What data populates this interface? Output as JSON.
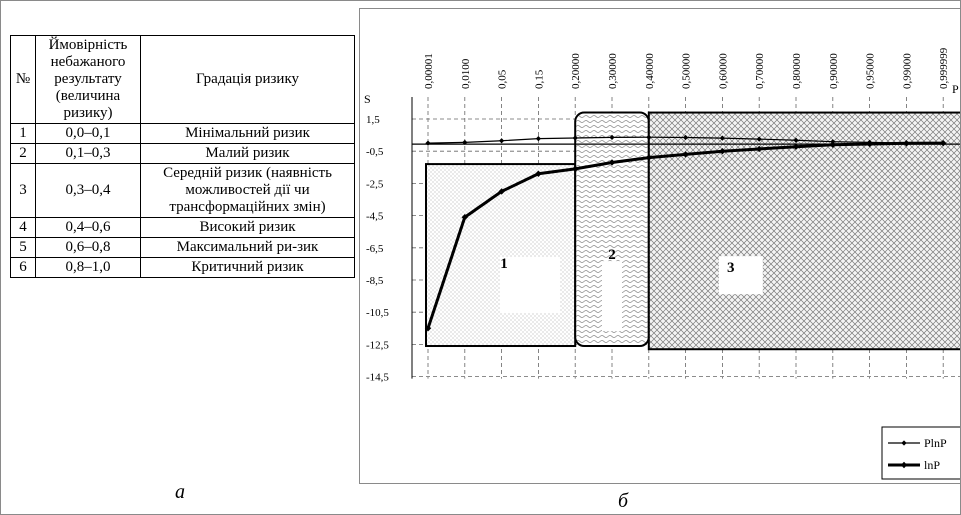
{
  "table": {
    "headers": [
      "№",
      "Ймовірність небажаного результату (величина ризику)",
      "Градація ризику"
    ],
    "rows": [
      {
        "num": "1",
        "range": "0,0–0,1",
        "grade": "Мінімальний ризик"
      },
      {
        "num": "2",
        "range": "0,1–0,3",
        "grade": "Малий ризик"
      },
      {
        "num": "3",
        "range": "0,3–0,4",
        "grade": "Середній ризик (наявність можливостей дії чи трансформаційних змін)"
      },
      {
        "num": "4",
        "range": "0,4–0,6",
        "grade": "Високий ризик"
      },
      {
        "num": "5",
        "range": "0,6–0,8",
        "grade": "Максимальний ри-зик"
      },
      {
        "num": "6",
        "range": "0,8–1,0",
        "grade": "Критичний ризик"
      }
    ]
  },
  "captions": {
    "a": "а",
    "b": "б"
  },
  "chart_data": {
    "type": "line",
    "ylabel": "S",
    "xlabel": "P",
    "categories": [
      "0,00001",
      "0,0100",
      "0,05",
      "0,15",
      "0,20000",
      "0,30000",
      "0,40000",
      "0,50000",
      "0,60000",
      "0,70000",
      "0,80000",
      "0,90000",
      "0,95000",
      "0,99000",
      "0,999999"
    ],
    "x_numeric": [
      1e-05,
      0.01,
      0.05,
      0.15,
      0.2,
      0.3,
      0.4,
      0.5,
      0.6,
      0.7,
      0.8,
      0.9,
      0.95,
      0.99,
      0.999999
    ],
    "y_ticks": [
      "1,5",
      "-0,5",
      "-2,5",
      "-4,5",
      "-6,5",
      "-8,5",
      "-10,5",
      "-12,5",
      "-14,5"
    ],
    "y_tick_values": [
      1.5,
      -0.5,
      -2.5,
      -4.5,
      -6.5,
      -8.5,
      -10.5,
      -12.5,
      -14.5
    ],
    "ylim": [
      -14.5,
      1.5
    ],
    "grid": true,
    "legend_position": "bottom-right",
    "series": [
      {
        "name": "PlnP",
        "x": [
          1e-05,
          0.01,
          0.05,
          0.15,
          0.2,
          0.3,
          0.4,
          0.5,
          0.6,
          0.7,
          0.8,
          0.9,
          0.95,
          0.99,
          0.999999
        ],
        "values": [
          0.0,
          0.05,
          0.15,
          0.28,
          0.32,
          0.36,
          0.37,
          0.35,
          0.31,
          0.25,
          0.18,
          0.09,
          0.05,
          0.01,
          0.0
        ],
        "marker": "diamond"
      },
      {
        "name": "lnP",
        "x": [
          1e-05,
          0.01,
          0.05,
          0.15,
          0.2,
          0.3,
          0.4,
          0.5,
          0.6,
          0.7,
          0.8,
          0.9,
          0.95,
          0.99,
          0.999999
        ],
        "values": [
          -11.5,
          -4.6,
          -3.0,
          -1.9,
          -1.6,
          -1.2,
          -0.9,
          -0.7,
          -0.5,
          -0.36,
          -0.22,
          -0.1,
          -0.05,
          -0.01,
          0.0
        ],
        "marker": "diamond"
      }
    ],
    "zones": [
      {
        "label": "1",
        "x_from": 1e-05,
        "x_to": 0.2,
        "y_top": -1.3,
        "y_bottom": -12.6,
        "pattern": "dots"
      },
      {
        "label": "2",
        "x_from": 0.2,
        "x_to": 0.4,
        "y_top": 1.9,
        "y_bottom": -12.6,
        "pattern": "waves"
      },
      {
        "label": "3",
        "x_from": 0.4,
        "x_to": 0.999999,
        "y_top": 1.9,
        "y_bottom": -12.8,
        "pattern": "crosshatch"
      }
    ]
  }
}
